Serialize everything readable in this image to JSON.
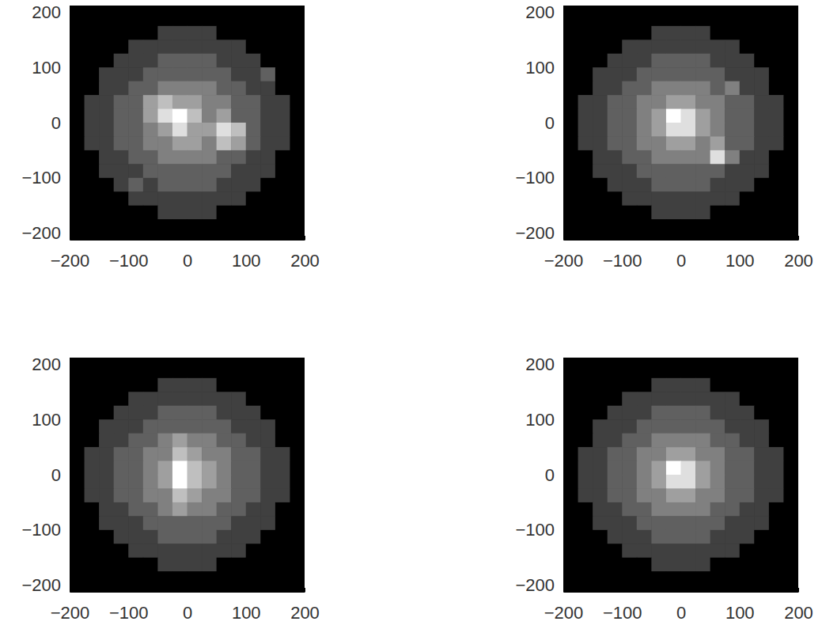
{
  "chart_data": [
    {
      "type": "heatmap",
      "color": "#ffffff",
      "xlim": [
        -200,
        200
      ],
      "ylim": [
        -212,
        212
      ],
      "xticks": [
        {
          "value": -200,
          "label": "−200"
        },
        {
          "value": -100,
          "label": "−100"
        },
        0,
        100,
        200
      ],
      "yticks": [
        {
          "value": -200,
          "label": "−200"
        },
        {
          "value": -100,
          "label": "−100"
        },
        0,
        100,
        200
      ],
      "x_bins": [
        -200,
        -175,
        -150,
        -125,
        -100,
        -75,
        -50,
        -25,
        0,
        25,
        50,
        75,
        100,
        125,
        150,
        175,
        200
      ],
      "y_bins": [
        200,
        175,
        150,
        125,
        100,
        75,
        50,
        25,
        0,
        -25,
        -50,
        -75,
        -100,
        -125,
        -150,
        -175,
        -200
      ],
      "cells": [
        [
          0,
          0,
          0,
          0,
          0,
          0,
          0,
          0,
          0,
          0,
          0,
          0,
          0,
          0,
          0,
          0
        ],
        [
          0,
          0,
          0,
          0,
          0,
          0,
          2,
          2,
          2,
          2,
          0,
          0,
          0,
          0,
          0,
          0
        ],
        [
          0,
          0,
          0,
          0,
          2,
          2,
          2,
          2,
          2,
          2,
          2,
          2,
          0,
          0,
          0,
          0
        ],
        [
          0,
          0,
          0,
          2,
          2,
          2,
          3,
          3,
          3,
          3,
          2,
          2,
          2,
          0,
          0,
          0
        ],
        [
          0,
          0,
          2,
          2,
          2,
          3,
          3,
          3,
          3,
          3,
          3,
          2,
          2,
          3,
          0,
          0
        ],
        [
          0,
          0,
          2,
          2,
          3,
          3,
          4,
          4,
          4,
          4,
          3,
          3,
          2,
          2,
          0,
          0
        ],
        [
          0,
          2,
          2,
          3,
          3,
          5,
          6,
          5,
          5,
          4,
          4,
          3,
          3,
          2,
          2,
          0
        ],
        [
          0,
          2,
          2,
          3,
          3,
          5,
          7,
          8,
          6,
          4,
          5,
          3,
          3,
          2,
          2,
          0
        ],
        [
          0,
          2,
          2,
          3,
          3,
          4,
          5,
          7,
          5,
          5,
          7,
          6,
          3,
          2,
          2,
          0
        ],
        [
          0,
          2,
          2,
          3,
          3,
          4,
          4,
          5,
          5,
          4,
          6,
          5,
          3,
          2,
          2,
          0
        ],
        [
          0,
          0,
          2,
          2,
          3,
          3,
          4,
          4,
          4,
          4,
          3,
          3,
          2,
          2,
          0,
          0
        ],
        [
          0,
          0,
          2,
          2,
          2,
          3,
          3,
          3,
          3,
          3,
          3,
          2,
          2,
          2,
          0,
          0
        ],
        [
          0,
          0,
          0,
          2,
          3,
          2,
          3,
          3,
          3,
          3,
          2,
          2,
          2,
          0,
          0,
          0
        ],
        [
          0,
          0,
          0,
          0,
          2,
          2,
          2,
          2,
          2,
          2,
          2,
          2,
          0,
          0,
          0,
          0
        ],
        [
          0,
          0,
          0,
          0,
          0,
          0,
          2,
          2,
          2,
          2,
          0,
          0,
          0,
          0,
          0,
          0
        ],
        [
          0,
          0,
          0,
          0,
          0,
          0,
          0,
          0,
          0,
          0,
          0,
          0,
          0,
          0,
          0,
          0
        ]
      ]
    },
    {
      "type": "heatmap",
      "color": "#ffffff",
      "xlim": [
        -200,
        200
      ],
      "ylim": [
        -212,
        212
      ],
      "xticks": [
        {
          "value": -200,
          "label": "−200"
        },
        {
          "value": -100,
          "label": "−100"
        },
        0,
        100,
        200
      ],
      "yticks": [
        {
          "value": -200,
          "label": "−200"
        },
        {
          "value": -100,
          "label": "−100"
        },
        0,
        100,
        200
      ],
      "x_bins": [
        -200,
        -175,
        -150,
        -125,
        -100,
        -75,
        -50,
        -25,
        0,
        25,
        50,
        75,
        100,
        125,
        150,
        175,
        200
      ],
      "y_bins": [
        200,
        175,
        150,
        125,
        100,
        75,
        50,
        25,
        0,
        -25,
        -50,
        -75,
        -100,
        -125,
        -150,
        -175,
        -200
      ],
      "cells": [
        [
          0,
          0,
          0,
          0,
          0,
          0,
          0,
          0,
          0,
          0,
          0,
          0,
          0,
          0,
          0,
          0
        ],
        [
          0,
          0,
          0,
          0,
          0,
          0,
          2,
          2,
          2,
          2,
          0,
          0,
          0,
          0,
          0,
          0
        ],
        [
          0,
          0,
          0,
          0,
          2,
          2,
          2,
          2,
          2,
          2,
          2,
          2,
          0,
          0,
          0,
          0
        ],
        [
          0,
          0,
          0,
          2,
          2,
          2,
          3,
          3,
          3,
          3,
          2,
          2,
          2,
          0,
          0,
          0
        ],
        [
          0,
          0,
          2,
          2,
          2,
          3,
          3,
          3,
          3,
          3,
          3,
          2,
          2,
          2,
          0,
          0
        ],
        [
          0,
          0,
          2,
          2,
          3,
          3,
          4,
          4,
          4,
          4,
          3,
          4,
          2,
          2,
          0,
          0
        ],
        [
          0,
          2,
          2,
          3,
          3,
          4,
          4,
          5,
          5,
          4,
          4,
          3,
          3,
          2,
          2,
          0
        ],
        [
          0,
          2,
          2,
          3,
          3,
          4,
          5,
          8,
          7,
          5,
          4,
          3,
          3,
          2,
          2,
          0
        ],
        [
          0,
          2,
          2,
          3,
          3,
          4,
          5,
          7,
          7,
          5,
          4,
          3,
          3,
          2,
          2,
          0
        ],
        [
          0,
          2,
          2,
          3,
          3,
          4,
          4,
          5,
          5,
          4,
          5,
          3,
          3,
          2,
          2,
          0
        ],
        [
          0,
          0,
          2,
          2,
          3,
          3,
          4,
          4,
          4,
          4,
          7,
          4,
          2,
          2,
          0,
          0
        ],
        [
          0,
          0,
          2,
          2,
          2,
          3,
          3,
          3,
          3,
          3,
          3,
          2,
          2,
          2,
          0,
          0
        ],
        [
          0,
          0,
          0,
          2,
          2,
          2,
          3,
          3,
          3,
          3,
          2,
          2,
          2,
          0,
          0,
          0
        ],
        [
          0,
          0,
          0,
          0,
          2,
          2,
          2,
          2,
          2,
          2,
          2,
          2,
          0,
          0,
          0,
          0
        ],
        [
          0,
          0,
          0,
          0,
          0,
          0,
          2,
          2,
          2,
          2,
          0,
          0,
          0,
          0,
          0,
          0
        ],
        [
          0,
          0,
          0,
          0,
          0,
          0,
          0,
          0,
          0,
          0,
          0,
          0,
          0,
          0,
          0,
          0
        ]
      ]
    },
    {
      "type": "heatmap",
      "color": "#ffffff",
      "xlim": [
        -200,
        200
      ],
      "ylim": [
        -212,
        212
      ],
      "xticks": [
        {
          "value": -200,
          "label": "−200"
        },
        {
          "value": -100,
          "label": "−100"
        },
        0,
        100,
        200
      ],
      "yticks": [
        {
          "value": -200,
          "label": "−200"
        },
        {
          "value": -100,
          "label": "−100"
        },
        0,
        100,
        200
      ],
      "x_bins": [
        -200,
        -175,
        -150,
        -125,
        -100,
        -75,
        -50,
        -25,
        0,
        25,
        50,
        75,
        100,
        125,
        150,
        175,
        200
      ],
      "y_bins": [
        200,
        175,
        150,
        125,
        100,
        75,
        50,
        25,
        0,
        -25,
        -50,
        -75,
        -100,
        -125,
        -150,
        -175,
        -200
      ],
      "cells": [
        [
          0,
          0,
          0,
          0,
          0,
          0,
          0,
          0,
          0,
          0,
          0,
          0,
          0,
          0,
          0,
          0
        ],
        [
          0,
          0,
          0,
          0,
          0,
          0,
          2,
          2,
          2,
          2,
          0,
          0,
          0,
          0,
          0,
          0
        ],
        [
          0,
          0,
          0,
          0,
          2,
          2,
          2,
          2,
          2,
          2,
          2,
          2,
          0,
          0,
          0,
          0
        ],
        [
          0,
          0,
          0,
          2,
          2,
          2,
          3,
          3,
          3,
          3,
          2,
          2,
          2,
          0,
          0,
          0
        ],
        [
          0,
          0,
          2,
          2,
          2,
          3,
          3,
          3,
          3,
          3,
          3,
          2,
          2,
          2,
          0,
          0
        ],
        [
          0,
          0,
          2,
          2,
          3,
          3,
          4,
          5,
          4,
          4,
          3,
          3,
          2,
          2,
          0,
          0
        ],
        [
          0,
          2,
          2,
          3,
          3,
          4,
          4,
          6,
          5,
          4,
          4,
          3,
          3,
          2,
          2,
          0
        ],
        [
          0,
          2,
          2,
          3,
          3,
          4,
          5,
          8,
          6,
          5,
          4,
          3,
          3,
          2,
          2,
          0
        ],
        [
          0,
          2,
          2,
          3,
          3,
          4,
          5,
          8,
          6,
          5,
          4,
          3,
          3,
          2,
          2,
          0
        ],
        [
          0,
          2,
          2,
          3,
          3,
          4,
          4,
          6,
          5,
          4,
          4,
          3,
          3,
          2,
          2,
          0
        ],
        [
          0,
          0,
          2,
          2,
          3,
          3,
          4,
          5,
          4,
          4,
          3,
          3,
          2,
          2,
          0,
          0
        ],
        [
          0,
          0,
          2,
          2,
          2,
          3,
          3,
          3,
          3,
          3,
          3,
          2,
          2,
          2,
          0,
          0
        ],
        [
          0,
          0,
          0,
          2,
          2,
          2,
          3,
          3,
          3,
          3,
          2,
          2,
          2,
          0,
          0,
          0
        ],
        [
          0,
          0,
          0,
          0,
          2,
          2,
          2,
          2,
          2,
          2,
          2,
          2,
          0,
          0,
          0,
          0
        ],
        [
          0,
          0,
          0,
          0,
          0,
          0,
          2,
          2,
          2,
          2,
          0,
          0,
          0,
          0,
          0,
          0
        ],
        [
          0,
          0,
          0,
          0,
          0,
          0,
          0,
          0,
          0,
          0,
          0,
          0,
          0,
          0,
          0,
          0
        ]
      ]
    },
    {
      "type": "heatmap",
      "color": "#ffffff",
      "xlim": [
        -200,
        200
      ],
      "ylim": [
        -212,
        212
      ],
      "xticks": [
        {
          "value": -200,
          "label": "−200"
        },
        {
          "value": -100,
          "label": "−100"
        },
        0,
        100,
        200
      ],
      "yticks": [
        {
          "value": -200,
          "label": "−200"
        },
        {
          "value": -100,
          "label": "−100"
        },
        0,
        100,
        200
      ],
      "x_bins": [
        -200,
        -175,
        -150,
        -125,
        -100,
        -75,
        -50,
        -25,
        0,
        25,
        50,
        75,
        100,
        125,
        150,
        175,
        200
      ],
      "y_bins": [
        200,
        175,
        150,
        125,
        100,
        75,
        50,
        25,
        0,
        -25,
        -50,
        -75,
        -100,
        -125,
        -150,
        -175,
        -200
      ],
      "cells": [
        [
          0,
          0,
          0,
          0,
          0,
          0,
          0,
          0,
          0,
          0,
          0,
          0,
          0,
          0,
          0,
          0
        ],
        [
          0,
          0,
          0,
          0,
          0,
          0,
          2,
          2,
          2,
          2,
          0,
          0,
          0,
          0,
          0,
          0
        ],
        [
          0,
          0,
          0,
          0,
          2,
          2,
          2,
          2,
          2,
          2,
          2,
          2,
          0,
          0,
          0,
          0
        ],
        [
          0,
          0,
          0,
          2,
          2,
          2,
          3,
          3,
          3,
          3,
          2,
          2,
          2,
          0,
          0,
          0
        ],
        [
          0,
          0,
          2,
          2,
          2,
          3,
          3,
          3,
          3,
          3,
          3,
          2,
          2,
          2,
          0,
          0
        ],
        [
          0,
          0,
          2,
          2,
          3,
          3,
          4,
          4,
          4,
          4,
          3,
          3,
          2,
          2,
          0,
          0
        ],
        [
          0,
          2,
          2,
          3,
          3,
          4,
          4,
          5,
          5,
          4,
          4,
          3,
          3,
          2,
          2,
          0
        ],
        [
          0,
          2,
          2,
          3,
          3,
          4,
          5,
          8,
          7,
          5,
          4,
          3,
          3,
          2,
          2,
          0
        ],
        [
          0,
          2,
          2,
          3,
          3,
          4,
          5,
          7,
          7,
          5,
          4,
          3,
          3,
          2,
          2,
          0
        ],
        [
          0,
          2,
          2,
          3,
          3,
          4,
          4,
          5,
          5,
          4,
          4,
          3,
          3,
          2,
          2,
          0
        ],
        [
          0,
          0,
          2,
          2,
          3,
          3,
          4,
          4,
          4,
          4,
          3,
          3,
          2,
          2,
          0,
          0
        ],
        [
          0,
          0,
          2,
          2,
          2,
          3,
          3,
          3,
          3,
          3,
          3,
          2,
          2,
          2,
          0,
          0
        ],
        [
          0,
          0,
          0,
          2,
          2,
          2,
          3,
          3,
          3,
          3,
          2,
          2,
          2,
          0,
          0,
          0
        ],
        [
          0,
          0,
          0,
          0,
          2,
          2,
          2,
          2,
          2,
          2,
          2,
          2,
          0,
          0,
          0,
          0
        ],
        [
          0,
          0,
          0,
          0,
          0,
          0,
          2,
          2,
          2,
          2,
          0,
          0,
          0,
          0,
          0,
          0
        ],
        [
          0,
          0,
          0,
          0,
          0,
          0,
          0,
          0,
          0,
          0,
          0,
          0,
          0,
          0,
          0,
          0
        ]
      ]
    }
  ]
}
